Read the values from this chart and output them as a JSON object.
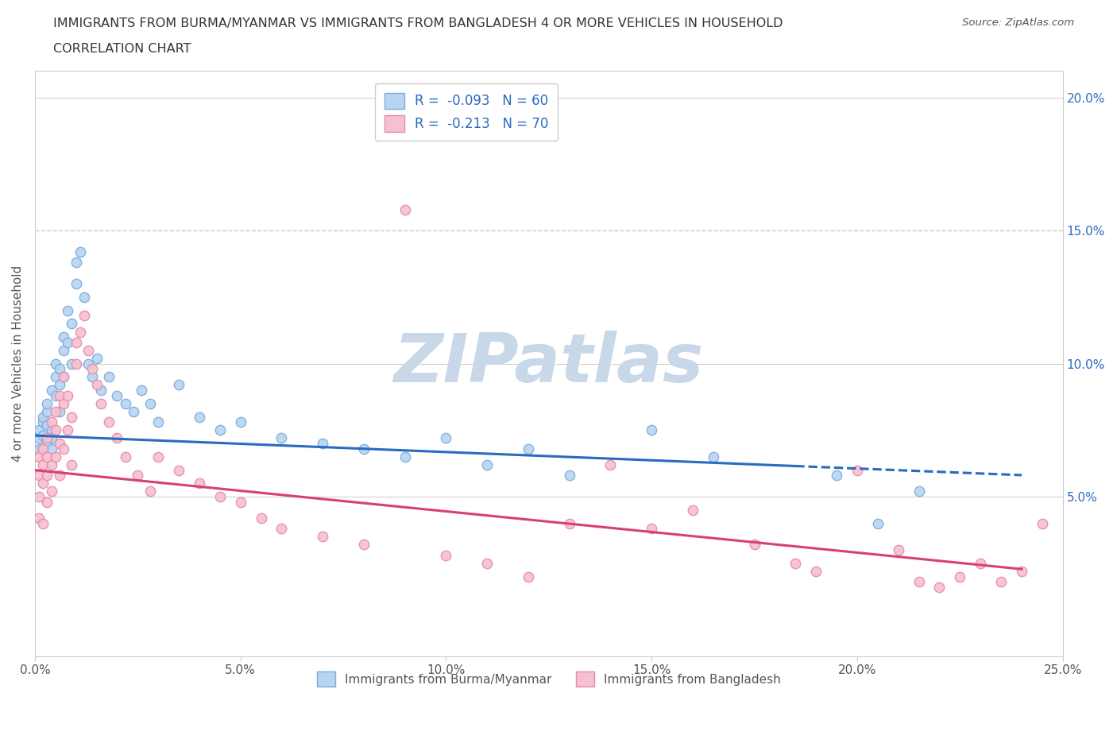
{
  "title_line1": "IMMIGRANTS FROM BURMA/MYANMAR VS IMMIGRANTS FROM BANGLADESH 4 OR MORE VEHICLES IN HOUSEHOLD",
  "title_line2": "CORRELATION CHART",
  "source": "Source: ZipAtlas.com",
  "ylabel": "4 or more Vehicles in Household",
  "xlim": [
    0.0,
    0.25
  ],
  "ylim": [
    -0.01,
    0.21
  ],
  "xticks": [
    0.0,
    0.05,
    0.1,
    0.15,
    0.2,
    0.25
  ],
  "xticklabels": [
    "0.0%",
    "5.0%",
    "10.0%",
    "15.0%",
    "20.0%",
    "25.0%"
  ],
  "yticks_right": [
    0.05,
    0.1,
    0.15,
    0.2
  ],
  "yticklabels_right": [
    "5.0%",
    "10.0%",
    "15.0%",
    "20.0%"
  ],
  "hline_dashed_y": 0.15,
  "blue_trend_intercept": 0.073,
  "blue_trend_slope": -0.062,
  "blue_trend_solid_end": 0.185,
  "blue_trend_end": 0.24,
  "pink_trend_intercept": 0.06,
  "pink_trend_slope": -0.155,
  "pink_trend_end": 0.24,
  "blue_scatter_x": [
    0.001,
    0.001,
    0.001,
    0.002,
    0.002,
    0.002,
    0.002,
    0.003,
    0.003,
    0.003,
    0.003,
    0.004,
    0.004,
    0.004,
    0.004,
    0.005,
    0.005,
    0.005,
    0.006,
    0.006,
    0.006,
    0.007,
    0.007,
    0.007,
    0.008,
    0.008,
    0.009,
    0.009,
    0.01,
    0.01,
    0.011,
    0.012,
    0.013,
    0.014,
    0.015,
    0.016,
    0.018,
    0.02,
    0.022,
    0.024,
    0.026,
    0.028,
    0.03,
    0.035,
    0.04,
    0.045,
    0.05,
    0.06,
    0.07,
    0.08,
    0.09,
    0.1,
    0.11,
    0.12,
    0.13,
    0.15,
    0.165,
    0.195,
    0.205,
    0.215
  ],
  "blue_scatter_y": [
    0.072,
    0.068,
    0.075,
    0.078,
    0.073,
    0.08,
    0.068,
    0.082,
    0.077,
    0.07,
    0.085,
    0.09,
    0.075,
    0.068,
    0.072,
    0.095,
    0.1,
    0.088,
    0.092,
    0.098,
    0.082,
    0.105,
    0.11,
    0.095,
    0.12,
    0.108,
    0.115,
    0.1,
    0.13,
    0.138,
    0.142,
    0.125,
    0.1,
    0.095,
    0.102,
    0.09,
    0.095,
    0.088,
    0.085,
    0.082,
    0.09,
    0.085,
    0.078,
    0.092,
    0.08,
    0.075,
    0.078,
    0.072,
    0.07,
    0.068,
    0.065,
    0.072,
    0.062,
    0.068,
    0.058,
    0.075,
    0.065,
    0.058,
    0.04,
    0.052
  ],
  "pink_scatter_x": [
    0.001,
    0.001,
    0.001,
    0.001,
    0.002,
    0.002,
    0.002,
    0.002,
    0.003,
    0.003,
    0.003,
    0.003,
    0.004,
    0.004,
    0.004,
    0.005,
    0.005,
    0.005,
    0.006,
    0.006,
    0.006,
    0.007,
    0.007,
    0.007,
    0.008,
    0.008,
    0.009,
    0.009,
    0.01,
    0.01,
    0.011,
    0.012,
    0.013,
    0.014,
    0.015,
    0.016,
    0.018,
    0.02,
    0.022,
    0.025,
    0.028,
    0.03,
    0.035,
    0.04,
    0.045,
    0.05,
    0.055,
    0.06,
    0.07,
    0.08,
    0.09,
    0.1,
    0.11,
    0.12,
    0.13,
    0.14,
    0.15,
    0.16,
    0.175,
    0.185,
    0.19,
    0.2,
    0.21,
    0.215,
    0.22,
    0.225,
    0.23,
    0.235,
    0.24,
    0.245
  ],
  "pink_scatter_y": [
    0.058,
    0.065,
    0.05,
    0.042,
    0.055,
    0.062,
    0.068,
    0.04,
    0.072,
    0.058,
    0.065,
    0.048,
    0.078,
    0.062,
    0.052,
    0.082,
    0.075,
    0.065,
    0.088,
    0.07,
    0.058,
    0.085,
    0.095,
    0.068,
    0.088,
    0.075,
    0.08,
    0.062,
    0.1,
    0.108,
    0.112,
    0.118,
    0.105,
    0.098,
    0.092,
    0.085,
    0.078,
    0.072,
    0.065,
    0.058,
    0.052,
    0.065,
    0.06,
    0.055,
    0.05,
    0.048,
    0.042,
    0.038,
    0.035,
    0.032,
    0.158,
    0.028,
    0.025,
    0.02,
    0.04,
    0.062,
    0.038,
    0.045,
    0.032,
    0.025,
    0.022,
    0.06,
    0.03,
    0.018,
    0.016,
    0.02,
    0.025,
    0.018,
    0.022,
    0.04
  ],
  "blue_color_face": "#b8d4f0",
  "blue_color_edge": "#7aacdf",
  "blue_trend_color": "#2a6abf",
  "pink_color_face": "#f5c0d0",
  "pink_color_edge": "#e88aaa",
  "pink_trend_color": "#d84070",
  "blue_name": "Immigrants from Burma/Myanmar",
  "pink_name": "Immigrants from Bangladesh",
  "blue_R": "-0.093",
  "blue_N": "60",
  "pink_R": "-0.213",
  "pink_N": "70",
  "watermark": "ZIPatlas",
  "watermark_color": "#c8d8e8",
  "background_color": "#ffffff",
  "grid_color": "#cccccc",
  "right_axis_color": "#2a6abf",
  "title_color": "#333333",
  "label_color": "#555555"
}
